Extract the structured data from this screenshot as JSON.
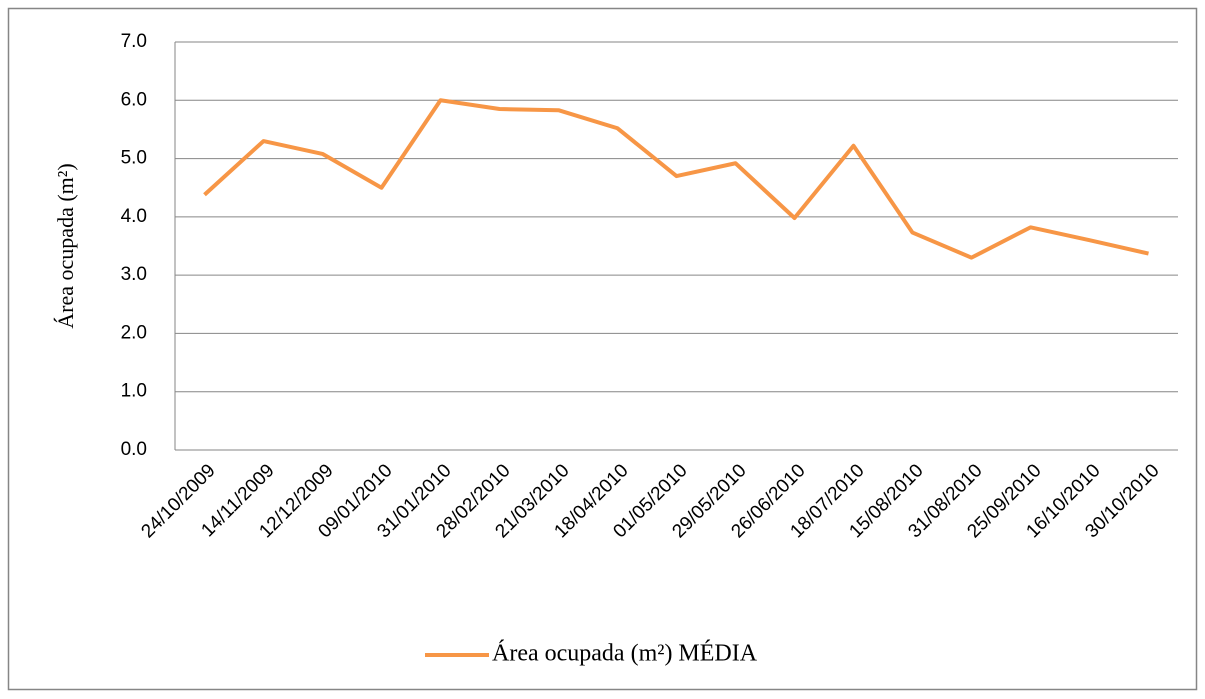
{
  "chart_data": {
    "type": "line",
    "y_label": "Área ocupada (m²)",
    "categories": [
      "24/10/2009",
      "14/11/2009",
      "12/12/2009",
      "09/01/2010",
      "31/01/2010",
      "28/02/2010",
      "21/03/2010",
      "18/04/2010",
      "01/05/2010",
      "29/05/2010",
      "26/06/2010",
      "18/07/2010",
      "15/08/2010",
      "31/08/2010",
      "25/09/2010",
      "16/10/2010",
      "30/10/2010"
    ],
    "series": [
      {
        "name": "Área ocupada (m²) MÉDIA",
        "color": "#f79646",
        "values": [
          4.38,
          5.3,
          5.08,
          4.5,
          6.0,
          5.85,
          5.83,
          5.52,
          4.7,
          4.92,
          3.98,
          5.22,
          3.73,
          3.3,
          3.82,
          3.6,
          3.37
        ]
      }
    ],
    "ylim": [
      0,
      7
    ],
    "yticks": [
      {
        "value": 0,
        "label": "0.0"
      },
      {
        "value": 1,
        "label": "1.0"
      },
      {
        "value": 2,
        "label": "2.0"
      },
      {
        "value": 3,
        "label": "3.0"
      },
      {
        "value": 4,
        "label": "4.0"
      },
      {
        "value": 5,
        "label": "5.0"
      },
      {
        "value": 6,
        "label": "6.0"
      },
      {
        "value": 7,
        "label": "7.0"
      }
    ],
    "grid": true,
    "legend": "bottom"
  }
}
